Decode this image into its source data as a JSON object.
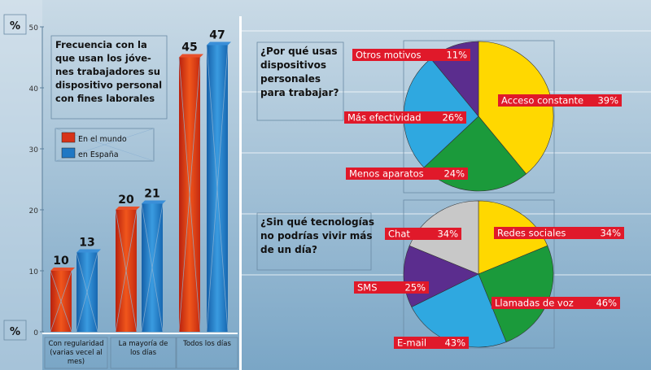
{
  "colors": {
    "background_top": "#c5d7e4",
    "background_bottom": "#7ea9c7",
    "spain_blue": "#1f78c4",
    "world_red": "#d73218",
    "label_red": "#e0192a",
    "pie_yellow": "#ffd800",
    "pie_green": "#1b9a3b",
    "pie_blue": "#2fa8e0",
    "pie_purple": "#5b2d8e",
    "pie_gray": "#c8c8c8"
  },
  "chart_data": [
    {
      "type": "bar",
      "title": "Frecuencia con la que usan los jóve- nes trabajadores su dispositivo personal con fines laborales",
      "title_lines": [
        "Frecuencia con la",
        "que usan los jóve-",
        "nes trabajadores su",
        "dispositivo personal",
        "con fines laborales"
      ],
      "ylabel": "%",
      "ylabel_bottom": "%",
      "ylim": [
        0,
        50
      ],
      "yticks": [
        "0",
        "10",
        "20",
        "30",
        "40",
        "50"
      ],
      "categories": [
        "Con regularidad (varias vecel al mes)",
        "La mayoría de los días",
        "Todos los días"
      ],
      "category_lines": [
        [
          "Con regularidad",
          "(varias vecel al",
          "mes)"
        ],
        [
          "La mayoría de",
          "los días"
        ],
        [
          "Todos los días"
        ]
      ],
      "series": [
        {
          "name": "En el mundo",
          "values": [
            10,
            20,
            45
          ]
        },
        {
          "name": "en España",
          "values": [
            13,
            21,
            47
          ]
        }
      ],
      "legend": [
        "En el mundo",
        "en España"
      ]
    },
    {
      "type": "pie",
      "title": "¿Por qué usas dispositivos personales para trabajar?",
      "title_lines": [
        "¿Por qué usas",
        "dispositivos",
        "personales",
        "para trabajar?"
      ],
      "slices": [
        {
          "label": "Acceso constante",
          "value": 39,
          "text": "39%"
        },
        {
          "label": "Menos aparatos",
          "value": 24,
          "text": "24%"
        },
        {
          "label": "Más efectividad",
          "value": 26,
          "text": "26%"
        },
        {
          "label": "Otros motivos",
          "value": 11,
          "text": "11%"
        }
      ]
    },
    {
      "type": "pie",
      "title": "¿Sin qué tecnologías no podrías vivir más de un día?",
      "title_lines": [
        "¿Sin qué tecnologías",
        "no podrías vivir más",
        "de un día?"
      ],
      "slices": [
        {
          "label": "Redes sociales",
          "value": 34,
          "text": "34%"
        },
        {
          "label": "Llamadas de voz",
          "value": 46,
          "text": "46%"
        },
        {
          "label": "E-mail",
          "value": 43,
          "text": "43%"
        },
        {
          "label": "SMS",
          "value": 25,
          "text": "25%"
        },
        {
          "label": "Chat",
          "value": 34,
          "text": "34%"
        }
      ]
    }
  ]
}
